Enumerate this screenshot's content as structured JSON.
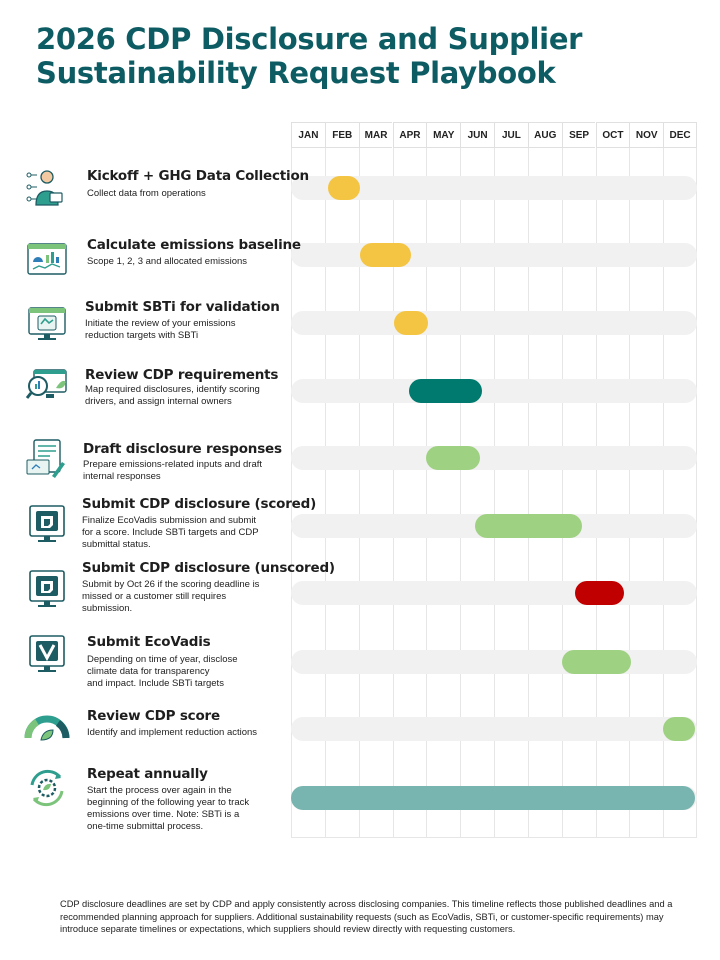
{
  "title": {
    "line1": "2026 CDP Disclosure and Supplier",
    "line2": "Sustainability Request Playbook"
  },
  "months": [
    "JAN",
    "FEB",
    "MAR",
    "APR",
    "MAY",
    "JUN",
    "JUL",
    "AUG",
    "SEP",
    "OCT",
    "NOV",
    "DEC"
  ],
  "colors": {
    "title": "#0d5c63",
    "yellow": "#f4c542",
    "teal": "#007a6e",
    "green": "#9fd182",
    "red": "#c00000",
    "muted_teal": "#78b5b0",
    "track": "#f1f1f1"
  },
  "tasks": [
    {
      "title": "Kickoff + GHG Data Collection",
      "desc": [
        "Collect data from operations"
      ],
      "icon": "data-collection-icon",
      "start_month": 1.1,
      "end_month": 2.05,
      "color": "yellow"
    },
    {
      "title": "Calculate emissions baseline",
      "desc": [
        "Scope 1, 2, 3 and allocated emissions"
      ],
      "icon": "dashboard-icon",
      "start_month": 2.05,
      "end_month": 3.55,
      "color": "yellow"
    },
    {
      "title": "Submit SBTi for validation",
      "desc": [
        "Initiate the review of your emissions",
        "reduction targets with SBTi"
      ],
      "icon": "monitor-check-icon",
      "start_month": 3.05,
      "end_month": 4.05,
      "color": "yellow"
    },
    {
      "title": "Review CDP requirements",
      "desc": [
        "Map required disclosures, identify scoring",
        "drivers, and assign internal owners"
      ],
      "icon": "analytics-leaf-icon",
      "start_month": 3.5,
      "end_month": 5.65,
      "color": "teal"
    },
    {
      "title": "Draft disclosure responses",
      "desc": [
        "Prepare emissions-related inputs and draft",
        "internal responses"
      ],
      "icon": "document-edit-icon",
      "start_month": 4.0,
      "end_month": 5.6,
      "color": "green"
    },
    {
      "title": "Submit CDP disclosure (scored)",
      "desc": [
        "Finalize EcoVadis submission and submit",
        "for a score. Include SBTi targets and CDP",
        "submittal status."
      ],
      "icon": "cdp-monitor-icon",
      "start_month": 5.45,
      "end_month": 8.6,
      "color": "green"
    },
    {
      "title": "Submit CDP disclosure (unscored)",
      "desc": [
        "Submit by Oct 26 if the scoring deadline is",
        "missed or a customer still requires",
        "submission."
      ],
      "icon": "cdp-monitor-icon",
      "start_month": 8.4,
      "end_month": 9.85,
      "color": "red"
    },
    {
      "title": "Submit EcoVadis",
      "desc": [
        "Depending on time of year, disclose",
        "climate data for transparency",
        "and impact. Include SBTi targets"
      ],
      "icon": "ecovadis-monitor-icon",
      "start_month": 8.0,
      "end_month": 10.05,
      "color": "green"
    },
    {
      "title": "Review CDP score",
      "desc": [
        "Identify and implement reduction actions"
      ],
      "icon": "score-gauge-icon",
      "start_month": 11.0,
      "end_month": 11.95,
      "color": "green"
    },
    {
      "title": "Repeat annually",
      "desc": [
        "Start the process over again in the",
        "beginning of the following year to track",
        "emissions over time. Note: SBTi is a",
        "one-time submittal process."
      ],
      "icon": "recycle-gear-icon",
      "start_month": 0.0,
      "end_month": 11.95,
      "color": "muted_teal"
    }
  ],
  "footnote": "CDP disclosure deadlines are set by CDP and apply consistently across disclosing companies. This timeline reflects those published deadlines and a recommended planning approach for suppliers. Additional sustainability requests (such as EcoVadis, SBTi, or customer-specific requirements) may introduce separate timelines or expectations, which suppliers should review directly with requesting customers."
}
